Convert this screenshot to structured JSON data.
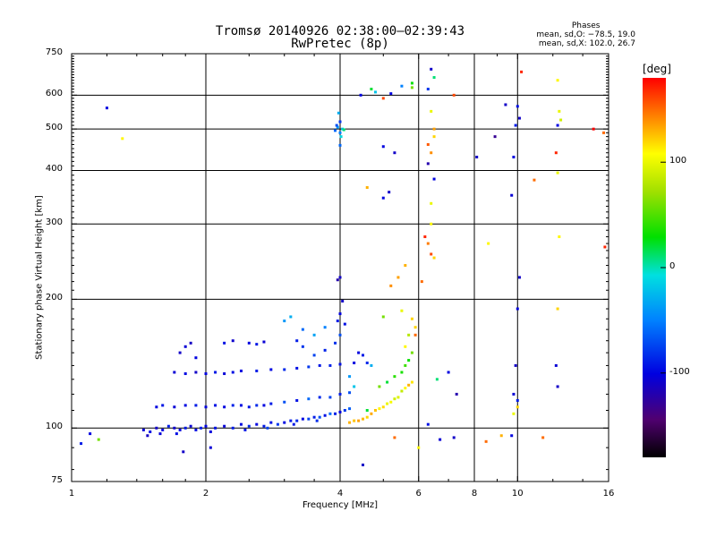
{
  "chart_data": {
    "type": "scatter",
    "title": "Tromsø 20140926 02:38:00–02:39:43",
    "subtitle": "RwPretec (8p)",
    "stats": {
      "heading": "Phases",
      "line_o": "mean, sd,O: −78.5, 19.0",
      "line_x": "mean, sd,X: 102.0, 26.7"
    },
    "xlabel": "Frequency [MHz]",
    "ylabel": "Stationary phase Virtual Height [km]",
    "xscale": "log",
    "yscale": "log",
    "xlim": [
      1,
      16
    ],
    "ylim": [
      75,
      750
    ],
    "xticks": [
      1,
      2,
      4,
      6,
      8,
      10,
      16
    ],
    "yticks": [
      75,
      100,
      200,
      300,
      400,
      500,
      600,
      750
    ],
    "xgrid": [
      2,
      4,
      6,
      8,
      10
    ],
    "ygrid": [
      100,
      200,
      300,
      400,
      500,
      600
    ],
    "colorbar": {
      "label": "[deg]",
      "range": [
        -180,
        180
      ],
      "ticks": [
        100,
        0,
        -100
      ]
    },
    "points": [
      [
        1.45,
        99,
        -105
      ],
      [
        1.5,
        98,
        -95
      ],
      [
        1.55,
        100,
        -110
      ],
      [
        1.6,
        99,
        -100
      ],
      [
        1.65,
        101,
        -90
      ],
      [
        1.7,
        100,
        -108
      ],
      [
        1.75,
        99,
        -100
      ],
      [
        1.8,
        100,
        -92
      ],
      [
        1.85,
        101,
        -105
      ],
      [
        1.9,
        99,
        -98
      ],
      [
        1.95,
        100,
        -88
      ],
      [
        2.0,
        101,
        -100
      ],
      [
        2.1,
        100,
        -95
      ],
      [
        2.2,
        101,
        -104
      ],
      [
        2.3,
        100,
        -90
      ],
      [
        2.4,
        102,
        -98
      ],
      [
        2.5,
        101,
        -85
      ],
      [
        2.6,
        102,
        -100
      ],
      [
        2.7,
        101,
        -92
      ],
      [
        2.8,
        103,
        -95
      ],
      [
        2.9,
        102,
        -80
      ],
      [
        3.0,
        103,
        -97
      ],
      [
        3.1,
        104,
        -90
      ],
      [
        3.2,
        104,
        -85
      ],
      [
        3.3,
        105,
        -99
      ],
      [
        3.4,
        105,
        -75
      ],
      [
        3.5,
        106,
        -90
      ],
      [
        3.6,
        106,
        -70
      ],
      [
        3.7,
        107,
        -95
      ],
      [
        3.8,
        108,
        -60
      ],
      [
        3.9,
        108,
        -88
      ],
      [
        4.0,
        109,
        -100
      ],
      [
        4.1,
        110,
        -80
      ],
      [
        4.2,
        111,
        -65
      ],
      [
        1.48,
        96,
        -112
      ],
      [
        1.58,
        97,
        -104
      ],
      [
        1.72,
        97,
        -96
      ],
      [
        2.05,
        98,
        -102
      ],
      [
        2.45,
        99,
        -94
      ],
      [
        2.75,
        100,
        -76
      ],
      [
        3.15,
        102,
        -92
      ],
      [
        3.55,
        104,
        -84
      ],
      [
        1.55,
        112,
        -100
      ],
      [
        1.6,
        113,
        -92
      ],
      [
        1.7,
        112,
        -105
      ],
      [
        1.8,
        113,
        -98
      ],
      [
        1.9,
        113,
        -90
      ],
      [
        2.0,
        112,
        -102
      ],
      [
        2.1,
        113,
        -95
      ],
      [
        2.2,
        112,
        -100
      ],
      [
        2.3,
        113,
        -88
      ],
      [
        2.4,
        113,
        -97
      ],
      [
        2.5,
        112,
        -92
      ],
      [
        2.6,
        113,
        -85
      ],
      [
        2.7,
        113,
        -100
      ],
      [
        2.8,
        114,
        -90
      ],
      [
        3.0,
        115,
        -70
      ],
      [
        3.2,
        116,
        -95
      ],
      [
        3.4,
        117,
        -60
      ],
      [
        3.6,
        118,
        -85
      ],
      [
        3.8,
        118,
        -75
      ],
      [
        4.0,
        120,
        -90
      ],
      [
        4.2,
        121,
        -70
      ],
      [
        1.7,
        135,
        -105
      ],
      [
        1.8,
        134,
        -98
      ],
      [
        1.9,
        135,
        -110
      ],
      [
        2.0,
        134,
        -100
      ],
      [
        2.1,
        135,
        -92
      ],
      [
        2.2,
        134,
        -104
      ],
      [
        2.3,
        135,
        -96
      ],
      [
        2.4,
        136,
        -100
      ],
      [
        2.6,
        136,
        -90
      ],
      [
        2.8,
        137,
        -98
      ],
      [
        3.0,
        137,
        -85
      ],
      [
        3.2,
        138,
        -95
      ],
      [
        3.4,
        139,
        -80
      ],
      [
        3.6,
        140,
        -92
      ],
      [
        3.8,
        140,
        -88
      ],
      [
        4.0,
        141,
        -95
      ],
      [
        4.3,
        142,
        -100
      ],
      [
        4.6,
        142,
        -85
      ],
      [
        1.75,
        150,
        -110
      ],
      [
        1.8,
        155,
        -105
      ],
      [
        1.85,
        158,
        -112
      ],
      [
        1.9,
        146,
        -100
      ],
      [
        2.2,
        158,
        -95
      ],
      [
        2.3,
        160,
        -108
      ],
      [
        2.5,
        158,
        -100
      ],
      [
        2.6,
        157,
        -92
      ],
      [
        2.7,
        159,
        -105
      ],
      [
        3.2,
        160,
        -90
      ],
      [
        3.3,
        155,
        -80
      ],
      [
        3.5,
        148,
        -75
      ],
      [
        3.7,
        152,
        -88
      ],
      [
        3.9,
        158,
        -82
      ],
      [
        4.0,
        165,
        -70
      ],
      [
        4.1,
        175,
        -95
      ],
      [
        4.4,
        150,
        -100
      ],
      [
        4.5,
        148,
        -90
      ],
      [
        3.1,
        182,
        -30
      ],
      [
        3.0,
        178,
        -40
      ],
      [
        3.3,
        170,
        -60
      ],
      [
        3.5,
        165,
        -35
      ],
      [
        3.7,
        172,
        -50
      ],
      [
        3.95,
        178,
        -90
      ],
      [
        4.0,
        185,
        -100
      ],
      [
        4.05,
        198,
        -110
      ],
      [
        3.95,
        222,
        -120
      ],
      [
        4.0,
        225,
        -110
      ],
      [
        4.2,
        103,
        130
      ],
      [
        4.3,
        104,
        125
      ],
      [
        4.4,
        104,
        135
      ],
      [
        4.5,
        105,
        128
      ],
      [
        4.6,
        106,
        120
      ],
      [
        4.7,
        108,
        132
      ],
      [
        4.8,
        110,
        126
      ],
      [
        4.9,
        111,
        110
      ],
      [
        5.0,
        112,
        118
      ],
      [
        5.1,
        114,
        100
      ],
      [
        5.2,
        115,
        105
      ],
      [
        5.3,
        117,
        90
      ],
      [
        5.4,
        118,
        95
      ],
      [
        5.5,
        122,
        85
      ],
      [
        5.6,
        124,
        110
      ],
      [
        5.7,
        126,
        130
      ],
      [
        5.8,
        128,
        115
      ],
      [
        4.9,
        125,
        60
      ],
      [
        5.1,
        128,
        20
      ],
      [
        5.3,
        132,
        40
      ],
      [
        5.5,
        135,
        35
      ],
      [
        5.6,
        140,
        45
      ],
      [
        5.7,
        144,
        30
      ],
      [
        5.8,
        150,
        60
      ],
      [
        5.6,
        155,
        110
      ],
      [
        5.7,
        165,
        80
      ],
      [
        5.9,
        165,
        150
      ],
      [
        5.9,
        172,
        120
      ],
      [
        5.0,
        182,
        60
      ],
      [
        5.5,
        188,
        100
      ],
      [
        5.8,
        180,
        120
      ],
      [
        4.6,
        110,
        20
      ],
      [
        4.3,
        125,
        -20
      ],
      [
        4.2,
        132,
        -40
      ],
      [
        4.7,
        140,
        -30
      ],
      [
        5.2,
        215,
        140
      ],
      [
        5.4,
        225,
        135
      ],
      [
        5.6,
        240,
        130
      ],
      [
        6.1,
        220,
        150
      ],
      [
        6.3,
        270,
        145
      ],
      [
        6.4,
        255,
        160
      ],
      [
        6.2,
        280,
        170
      ],
      [
        6.5,
        250,
        120
      ],
      [
        6.4,
        300,
        110
      ],
      [
        6.4,
        335,
        100
      ],
      [
        6.5,
        382,
        -100
      ],
      [
        6.3,
        415,
        -120
      ],
      [
        6.4,
        440,
        140
      ],
      [
        6.3,
        460,
        155
      ],
      [
        6.5,
        480,
        120
      ],
      [
        6.5,
        500,
        135
      ],
      [
        6.4,
        550,
        100
      ],
      [
        6.3,
        620,
        -80
      ],
      [
        6.5,
        660,
        10
      ],
      [
        6.4,
        690,
        -110
      ],
      [
        7.0,
        135,
        -100
      ],
      [
        7.3,
        120,
        -120
      ],
      [
        7.2,
        95,
        -110
      ],
      [
        6.7,
        94,
        -105
      ],
      [
        6.3,
        102,
        -95
      ],
      [
        6.6,
        130,
        10
      ],
      [
        8.5,
        93,
        150
      ],
      [
        9.2,
        96,
        130
      ],
      [
        9.7,
        96,
        -100
      ],
      [
        9.9,
        140,
        -110
      ],
      [
        9.8,
        120,
        -105
      ],
      [
        10.0,
        112,
        120
      ],
      [
        9.8,
        108,
        100
      ],
      [
        10.0,
        116,
        -90
      ],
      [
        10.0,
        190,
        -100
      ],
      [
        10.1,
        225,
        -110
      ],
      [
        9.7,
        350,
        -105
      ],
      [
        9.8,
        430,
        -100
      ],
      [
        10.1,
        530,
        -110
      ],
      [
        10.0,
        565,
        -95
      ],
      [
        9.9,
        510,
        -90
      ],
      [
        10.2,
        680,
        170
      ],
      [
        8.1,
        430,
        -110
      ],
      [
        7.2,
        600,
        160
      ],
      [
        8.6,
        270,
        110
      ],
      [
        8.9,
        480,
        -130
      ],
      [
        9.4,
        570,
        -110
      ],
      [
        10.9,
        380,
        150
      ],
      [
        12.3,
        190,
        120
      ],
      [
        12.4,
        280,
        110
      ],
      [
        12.3,
        395,
        100
      ],
      [
        12.2,
        440,
        170
      ],
      [
        12.5,
        525,
        90
      ],
      [
        12.4,
        550,
        100
      ],
      [
        12.3,
        650,
        110
      ],
      [
        12.2,
        140,
        -105
      ],
      [
        12.3,
        125,
        -110
      ],
      [
        11.4,
        95,
        150
      ],
      [
        15.7,
        265,
        170
      ],
      [
        12.3,
        510,
        -100
      ],
      [
        14.8,
        500,
        180
      ],
      [
        15.6,
        490,
        150
      ],
      [
        4.0,
        490,
        -50
      ],
      [
        3.95,
        505,
        -40
      ],
      [
        4.05,
        500,
        -20
      ],
      [
        3.9,
        496,
        -60
      ],
      [
        4.0,
        520,
        -80
      ],
      [
        3.97,
        545,
        -30
      ],
      [
        4.02,
        480,
        -10
      ],
      [
        3.93,
        510,
        -70
      ],
      [
        4.08,
        498,
        10
      ],
      [
        4.0,
        458,
        -60
      ],
      [
        4.45,
        600,
        -100
      ],
      [
        4.8,
        610,
        -20
      ],
      [
        5.0,
        455,
        -100
      ],
      [
        5.3,
        440,
        -110
      ],
      [
        5.15,
        356,
        -110
      ],
      [
        5.0,
        345,
        -100
      ],
      [
        4.6,
        365,
        130
      ],
      [
        4.7,
        620,
        20
      ],
      [
        5.5,
        630,
        -50
      ],
      [
        5.8,
        640,
        30
      ],
      [
        5.2,
        605,
        -100
      ],
      [
        5.0,
        590,
        160
      ],
      [
        5.8,
        625,
        60
      ],
      [
        1.2,
        560,
        -100
      ],
      [
        1.3,
        475,
        110
      ],
      [
        1.1,
        97,
        -100
      ],
      [
        1.15,
        94,
        60
      ],
      [
        1.05,
        92,
        -90
      ],
      [
        1.78,
        88,
        -110
      ],
      [
        2.05,
        90,
        -105
      ],
      [
        4.5,
        82,
        -110
      ],
      [
        5.3,
        95,
        150
      ],
      [
        6.0,
        90,
        110
      ]
    ]
  }
}
